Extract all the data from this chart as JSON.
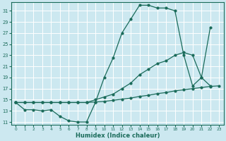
{
  "xlabel": "Humidex (Indice chaleur)",
  "bg_color": "#cce8f0",
  "grid_color": "#ffffff",
  "line_color": "#1a6b5a",
  "xlim": [
    -0.5,
    23.5
  ],
  "ylim": [
    10.5,
    32.5
  ],
  "xticks": [
    0,
    1,
    2,
    3,
    4,
    5,
    6,
    7,
    8,
    9,
    10,
    11,
    12,
    13,
    14,
    15,
    16,
    17,
    18,
    19,
    20,
    21,
    22,
    23
  ],
  "yticks": [
    11,
    13,
    15,
    17,
    19,
    21,
    23,
    25,
    27,
    29,
    31
  ],
  "c1_x": [
    0,
    1,
    2,
    3,
    4,
    5,
    6,
    7,
    8,
    9,
    10,
    11,
    12,
    13,
    14,
    15,
    16,
    17,
    18,
    19,
    20,
    21,
    22
  ],
  "c1_y": [
    14.5,
    13.2,
    13.2,
    13.0,
    13.2,
    12.0,
    11.2,
    11.0,
    11.0,
    14.5,
    19.0,
    22.5,
    27.0,
    29.5,
    32.0,
    32.0,
    31.5,
    31.5,
    31.0,
    23.0,
    17.5,
    19.0,
    17.5
  ],
  "c2_x": [
    0,
    1,
    2,
    3,
    4,
    5,
    6,
    7,
    8,
    9,
    10,
    11,
    12,
    13,
    14,
    15,
    16,
    17,
    18,
    19,
    20,
    21,
    22
  ],
  "c2_y": [
    14.5,
    14.5,
    14.5,
    14.5,
    14.5,
    14.5,
    14.5,
    14.5,
    14.5,
    15.0,
    15.5,
    16.0,
    17.0,
    18.0,
    19.5,
    20.5,
    21.5,
    22.0,
    23.0,
    23.5,
    23.0,
    19.0,
    28.0
  ],
  "c3_x": [
    0,
    1,
    2,
    3,
    4,
    5,
    6,
    7,
    8,
    9,
    10,
    11,
    12,
    13,
    14,
    15,
    16,
    17,
    18,
    19,
    20,
    21,
    22,
    23
  ],
  "c3_y": [
    14.5,
    14.5,
    14.5,
    14.5,
    14.5,
    14.5,
    14.5,
    14.5,
    14.5,
    14.6,
    14.7,
    14.9,
    15.1,
    15.3,
    15.6,
    15.8,
    16.1,
    16.3,
    16.6,
    16.8,
    17.0,
    17.2,
    17.4,
    17.5
  ]
}
